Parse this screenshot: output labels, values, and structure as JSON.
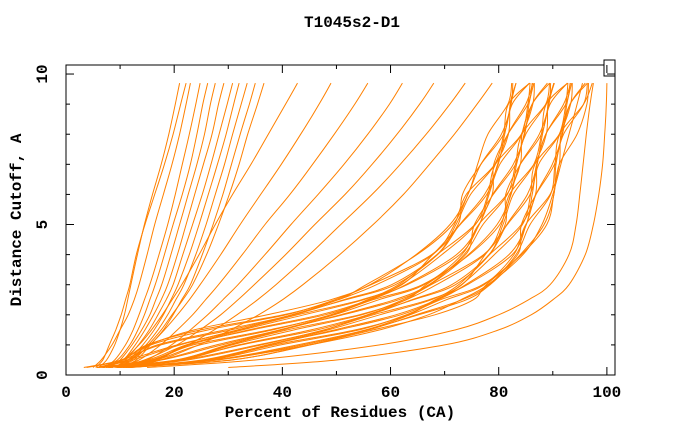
{
  "window": {
    "background": "#ffffff"
  },
  "chart_data": {
    "type": "line",
    "title": "T1045s2-D1",
    "xlabel": "Percent of Residues (CA)",
    "ylabel": "Distance Cutoff, A",
    "xlim": [
      0,
      101.5
    ],
    "ylim": [
      0,
      10.3
    ],
    "x_major_ticks": [
      0,
      20,
      40,
      60,
      80,
      100
    ],
    "x_minor_ticks": [
      10,
      30,
      50,
      70,
      90
    ],
    "y_major_ticks": [
      0,
      5,
      10
    ],
    "y_minor_ticks": [
      1,
      2,
      3,
      4,
      6,
      7,
      8,
      9
    ],
    "grid": "off",
    "legend": "none (empty key box at top-right corner)",
    "line_color": "#ff8000",
    "frame_color": "#000000",
    "y_grid": [
      0.25,
      0.5,
      1,
      1.5,
      2,
      2.5,
      3,
      4,
      5,
      6,
      7,
      8,
      9,
      9.7
    ],
    "series": [
      [
        6.0,
        7.5,
        9.0,
        10.0,
        10.8,
        11.4,
        12.0,
        13.2,
        14.5,
        16.0,
        17.6,
        19.0,
        20.2,
        21.0
      ],
      [
        5.0,
        6.5,
        8.5,
        10.0,
        11.5,
        12.6,
        13.5,
        15.0,
        16.4,
        18.0,
        19.6,
        21.0,
        22.2,
        23.0
      ],
      [
        7.0,
        9.0,
        11.0,
        12.4,
        13.5,
        14.5,
        15.5,
        17.2,
        18.8,
        20.2,
        21.5,
        22.8,
        24.0,
        24.8
      ],
      [
        6.5,
        9.5,
        11.8,
        13.3,
        14.5,
        15.5,
        16.5,
        18.2,
        19.8,
        21.5,
        23.0,
        24.2,
        25.3,
        26.2
      ],
      [
        8.0,
        10.0,
        12.2,
        14.0,
        15.5,
        16.6,
        17.7,
        19.4,
        21.0,
        22.6,
        24.2,
        25.6,
        26.7,
        27.6
      ],
      [
        7.0,
        10.5,
        12.8,
        14.6,
        16.2,
        17.6,
        18.8,
        20.6,
        22.2,
        23.8,
        25.4,
        27.0,
        28.2,
        29.2
      ],
      [
        9.0,
        11.0,
        13.4,
        15.4,
        17.0,
        18.5,
        19.8,
        21.6,
        23.4,
        25.2,
        26.8,
        28.3,
        29.8,
        30.8
      ],
      [
        8.5,
        11.5,
        14.2,
        16.3,
        18.0,
        19.4,
        20.7,
        22.8,
        24.6,
        26.3,
        28.0,
        29.6,
        31.0,
        32.0
      ],
      [
        9.5,
        12.0,
        14.8,
        17.0,
        18.8,
        20.3,
        21.8,
        24.0,
        25.9,
        27.6,
        29.3,
        30.8,
        32.4,
        33.5
      ],
      [
        10.0,
        13.0,
        15.6,
        18.0,
        19.8,
        21.4,
        23.0,
        25.2,
        27.2,
        29.0,
        30.6,
        32.2,
        33.9,
        35.0
      ],
      [
        9.0,
        12.5,
        15.2,
        17.6,
        19.6,
        21.6,
        23.4,
        26.0,
        28.2,
        30.2,
        32.0,
        33.6,
        35.4,
        36.6
      ],
      [
        5.5,
        6.8,
        8.0,
        9.2,
        10.2,
        11.0,
        11.8,
        13.0,
        14.6,
        16.4,
        18.2,
        19.8,
        21.2,
        22.2
      ],
      [
        7.5,
        10.5,
        13.5,
        15.8,
        17.8,
        19.6,
        21.4,
        24.6,
        27.6,
        30.8,
        34.2,
        37.4,
        40.6,
        42.8
      ],
      [
        8.5,
        12.0,
        15.5,
        18.2,
        20.6,
        22.8,
        24.8,
        28.6,
        32.2,
        36.0,
        39.8,
        43.4,
        46.8,
        49.0
      ],
      [
        9.5,
        13.5,
        17.5,
        20.6,
        23.4,
        25.8,
        28.2,
        32.6,
        36.8,
        41.4,
        45.6,
        49.6,
        53.4,
        55.8
      ],
      [
        10.5,
        15.0,
        19.5,
        23.0,
        26.2,
        29.0,
        31.8,
        36.8,
        41.6,
        46.6,
        51.4,
        55.8,
        59.8,
        62.2
      ],
      [
        9.5,
        14.5,
        20.5,
        24.8,
        28.6,
        31.8,
        34.8,
        40.6,
        46.0,
        51.6,
        56.6,
        61.2,
        65.4,
        68.0
      ],
      [
        11.5,
        16.5,
        22.5,
        27.4,
        31.6,
        35.4,
        38.8,
        45.0,
        50.8,
        56.6,
        61.8,
        66.6,
        71.0,
        73.8
      ],
      [
        11.0,
        17.5,
        24.5,
        30.4,
        35.6,
        40.0,
        43.8,
        50.6,
        56.8,
        62.4,
        67.2,
        71.8,
        76.0,
        78.8
      ],
      [
        3.3,
        10.2,
        15.3,
        23.7,
        37.2,
        48.9,
        56.2,
        64.7,
        71.0,
        74.3,
        76.1,
        78.0,
        81.7,
        82.4
      ],
      [
        3.8,
        10.4,
        15.0,
        24.9,
        40.2,
        50.2,
        55.5,
        64.9,
        71.5,
        74.3,
        76.7,
        80.5,
        82.3,
        82.6
      ],
      [
        6.0,
        11.3,
        15.7,
        26.3,
        40.7,
        49.7,
        56.4,
        67.6,
        72.5,
        73.3,
        76.7,
        80.9,
        82.2,
        83.2
      ],
      [
        6.2,
        11.4,
        16.9,
        29.4,
        41.8,
        50.3,
        57.4,
        67.8,
        71.8,
        74.0,
        79.3,
        81.8,
        82.1,
        83.2
      ],
      [
        6.8,
        10.6,
        17.5,
        30.5,
        42.2,
        51.3,
        60.2,
        68.6,
        72.1,
        74.8,
        79.3,
        80.9,
        81.8,
        85.7
      ],
      [
        5.7,
        11.4,
        20.6,
        32.0,
        41.7,
        51.7,
        60.9,
        68.7,
        72.8,
        77.4,
        79.9,
        81.1,
        82.5,
        85.7
      ],
      [
        5.7,
        12.3,
        21.1,
        31.7,
        42.8,
        54.6,
        62.1,
        67.8,
        72.9,
        77.8,
        79.8,
        81.7,
        85.0,
        86.3
      ],
      [
        6.0,
        15.1,
        22.3,
        32.6,
        44.0,
        55.0,
        61.5,
        68.6,
        75.6,
        78.8,
        79.1,
        81.7,
        85.4,
        86.2
      ],
      [
        5.8,
        15.7,
        22.8,
        33.8,
        47.0,
        56.0,
        61.9,
        69.5,
        75.7,
        78.0,
        79.4,
        84.2,
        86.3,
        86.6
      ],
      [
        8.0,
        16.8,
        22.3,
        34.4,
        47.9,
        56.3,
        62.8,
        72.2,
        76.4,
        78.2,
        80.2,
        84.2,
        85.4,
        85.8
      ],
      [
        7.8,
        16.1,
        23.5,
        37.6,
        49.3,
        55.7,
        63.1,
        72.8,
        76.4,
        78.9,
        82.7,
        84.8,
        85.6,
        86.5
      ],
      [
        8.2,
        16.6,
        24.8,
        38.2,
        48.9,
        56.7,
        65.9,
        73.9,
        75.5,
        79.0,
        83.1,
        84.7,
        86.2,
        89.0
      ],
      [
        7.8,
        17.4,
        27.8,
        39.5,
        49.6,
        57.8,
        66.2,
        73.2,
        76.3,
        81.5,
        84.0,
        84.3,
        86.2,
        89.4
      ],
      [
        6.6,
        17.6,
        28.8,
        40.0,
        50.7,
        60.7,
        67.1,
        73.6,
        77.1,
        81.6,
        83.1,
        84.3,
        88.7,
        90.3
      ],
      [
        6.9,
        20.3,
        30.3,
        39.6,
        51.2,
        61.5,
        67.3,
        74.4,
        79.7,
        82.3,
        83.3,
        85.0,
        88.7,
        89.4
      ],
      [
        7.4,
        20.6,
        29.9,
        40.9,
        54.2,
        62.8,
        66.6,
        74.6,
        80.2,
        82.2,
        84.0,
        87.5,
        89.3,
        89.6
      ],
      [
        9.6,
        21.4,
        30.7,
        42.2,
        54.7,
        62.3,
        67.5,
        77.2,
        81.2,
        81.3,
        84.0,
        87.9,
        89.2,
        90.2
      ],
      [
        9.8,
        21.5,
        31.9,
        45.3,
        55.8,
        62.9,
        68.5,
        77.4,
        80.5,
        82.0,
        86.5,
        88.8,
        89.1,
        90.2
      ],
      [
        10.5,
        20.7,
        32.4,
        46.4,
        56.2,
        63.9,
        71.3,
        78.2,
        80.8,
        82.7,
        86.5,
        87.9,
        88.8,
        92.7
      ],
      [
        9.3,
        21.6,
        35.5,
        47.9,
        55.7,
        64.2,
        72.0,
        78.3,
        81.5,
        85.3,
        87.1,
        88.1,
        89.5,
        92.7
      ],
      [
        9.3,
        22.5,
        36.1,
        47.7,
        56.8,
        67.1,
        73.2,
        77.5,
        81.6,
        85.8,
        87.0,
        88.7,
        92.0,
        93.3
      ],
      [
        9.6,
        25.2,
        37.3,
        48.5,
        58.0,
        67.5,
        72.6,
        78.3,
        84.2,
        86.8,
        87.1,
        88.7,
        92.4,
        93.2
      ],
      [
        9.4,
        25.8,
        37.7,
        49.7,
        61.0,
        68.5,
        73.1,
        79.2,
        84.4,
        85.9,
        86.7,
        91.2,
        93.3,
        93.6
      ],
      [
        11.7,
        27.0,
        37.3,
        50.4,
        61.9,
        68.8,
        73.9,
        81.9,
        85.1,
        86.2,
        87.4,
        91.2,
        92.4,
        92.8
      ],
      [
        11.4,
        26.3,
        38.5,
        53.5,
        63.3,
        68.2,
        74.2,
        82.5,
        85.1,
        86.9,
        89.9,
        91.8,
        92.6,
        93.5
      ],
      [
        11.8,
        26.7,
        39.7,
        54.2,
        62.9,
        69.2,
        77.0,
        83.5,
        84.2,
        86.9,
        90.3,
        91.7,
        93.2,
        96.0
      ],
      [
        11.4,
        27.5,
        42.8,
        55.4,
        63.6,
        70.3,
        77.3,
        82.8,
        85.0,
        89.5,
        91.2,
        91.5,
        93.2,
        96.4
      ],
      [
        10.2,
        27.8,
        43.8,
        55.9,
        64.7,
        73.2,
        78.2,
        83.2,
        85.8,
        89.6,
        90.4,
        91.3,
        95.7,
        97.3
      ],
      [
        10.6,
        30.5,
        45.2,
        55.6,
        65.2,
        74.0,
        78.4,
        84.0,
        88.4,
        90.2,
        90.6,
        92.0,
        95.7,
        96.4
      ],
      [
        11.0,
        30.7,
        44.9,
        56.8,
        68.2,
        75.3,
        77.7,
        84.2,
        88.9,
        90.2,
        91.2,
        94.5,
        96.3,
        96.6
      ],
      [
        12.0,
        28.0,
        45.0,
        58.0,
        67.0,
        73.0,
        78.0,
        84.5,
        88.0,
        90.0,
        91.5,
        93.0,
        94.5,
        95.5
      ],
      [
        15.0,
        35.0,
        58.0,
        72.0,
        80.0,
        85.5,
        89.5,
        93.0,
        94.3,
        95.0,
        95.6,
        96.2,
        96.9,
        97.5
      ],
      [
        30.0,
        50.0,
        70.0,
        80.0,
        86.0,
        90.0,
        93.0,
        96.0,
        97.5,
        98.5,
        99.2,
        99.6,
        99.9,
        100.0
      ]
    ]
  }
}
